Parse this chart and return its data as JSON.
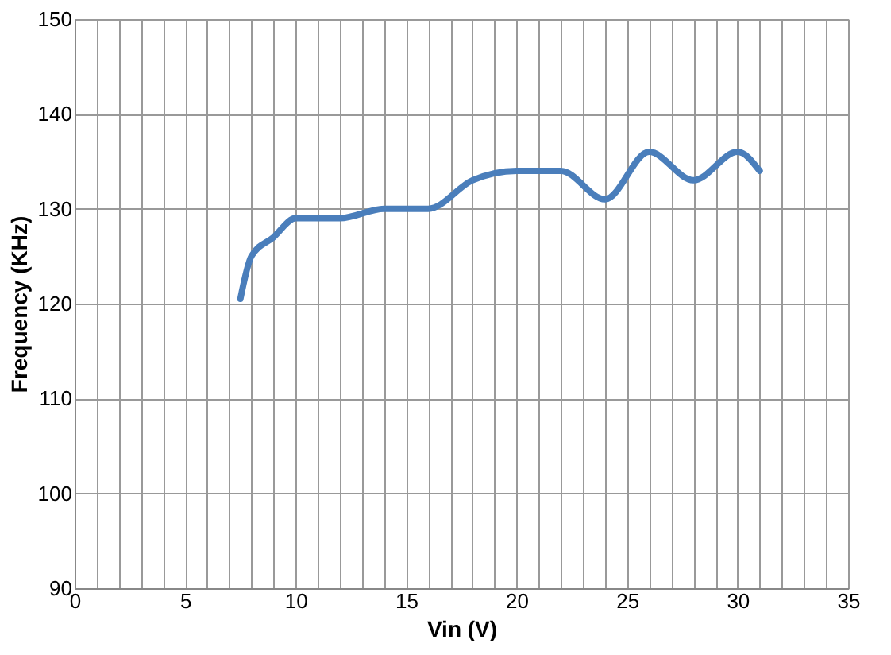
{
  "chart_data": {
    "type": "line",
    "xlabel": "Vin (V)",
    "ylabel": "Frequency (KHz)",
    "x": [
      7.5,
      8,
      9,
      10,
      12,
      14,
      16,
      18,
      20,
      22,
      24,
      26,
      28,
      30,
      31
    ],
    "series": [
      {
        "color": "#4a7ebb",
        "values": [
          120.5,
          125,
          127,
          129,
          129,
          130,
          130,
          133,
          134,
          134,
          131,
          136,
          133,
          136,
          134
        ]
      }
    ],
    "xlim": [
      0,
      35
    ],
    "ylim": [
      90,
      150
    ],
    "xticks": [
      0,
      {
        "value": 1,
        "label": null
      },
      {
        "value": 2,
        "label": null
      },
      {
        "value": 3,
        "label": null
      },
      {
        "value": 4,
        "label": null
      },
      5,
      {
        "value": 6,
        "label": null
      },
      {
        "value": 7,
        "label": null
      },
      {
        "value": 8,
        "label": null
      },
      {
        "value": 9,
        "label": null
      },
      10,
      {
        "value": 11,
        "label": null
      },
      {
        "value": 12,
        "label": null
      },
      {
        "value": 13,
        "label": null
      },
      {
        "value": 14,
        "label": null
      },
      15,
      {
        "value": 16,
        "label": null
      },
      {
        "value": 17,
        "label": null
      },
      {
        "value": 18,
        "label": null
      },
      {
        "value": 19,
        "label": null
      },
      20,
      {
        "value": 21,
        "label": null
      },
      {
        "value": 22,
        "label": null
      },
      {
        "value": 23,
        "label": null
      },
      {
        "value": 24,
        "label": null
      },
      25,
      {
        "value": 26,
        "label": null
      },
      {
        "value": 27,
        "label": null
      },
      {
        "value": 28,
        "label": null
      },
      {
        "value": 29,
        "label": null
      },
      30,
      {
        "value": 31,
        "label": null
      },
      {
        "value": 32,
        "label": null
      },
      {
        "value": 33,
        "label": null
      },
      {
        "value": 34,
        "label": null
      },
      35
    ],
    "yticks": [
      90,
      100,
      110,
      120,
      130,
      140,
      150
    ],
    "grid": true,
    "marker": "none",
    "line_style": "solid"
  }
}
